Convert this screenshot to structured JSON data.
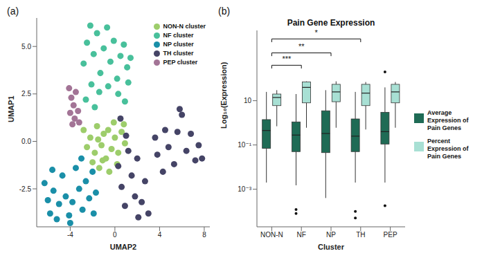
{
  "chart_data": [
    {
      "panel": "(a)",
      "type": "scatter",
      "x_label": "UMAP2",
      "y_label": "UMAP1",
      "xlim": [
        -7,
        8.5
      ],
      "xticks": [
        -4,
        0,
        4,
        8
      ],
      "ylim": [
        -4.5,
        6.5
      ],
      "yticks": [
        -2.5,
        {
          "value": 0,
          "label": "0.0"
        },
        2.5,
        {
          "value": 5,
          "label": "5.0"
        }
      ],
      "legend": "upper right",
      "series": [
        {
          "name": "NON-N cluster",
          "color": "#9dcd6b",
          "x": [
            -2.5,
            -2.2,
            -1.8,
            -1.5,
            -1.2,
            -1,
            -0.8,
            -0.6,
            -0.3,
            0,
            0.3,
            0.6,
            0.9,
            -2,
            -1.4,
            -0.5,
            0.2,
            -2.8,
            -1.6,
            -0.1,
            0.8,
            -1.1
          ],
          "y": [
            -0.3,
            0.2,
            -0.6,
            0.1,
            -0.2,
            0.4,
            -0.9,
            0.6,
            -0.4,
            0.2,
            -0.6,
            0.5,
            -0.1,
            -1.1,
            -1.4,
            -1.6,
            -1.2,
            0.6,
            0.8,
            1.0,
            0.9,
            -1.0
          ]
        },
        {
          "name": "NF cluster",
          "color": "#48c09b",
          "x": [
            -2.8,
            -2.5,
            -2.2,
            -1.9,
            -1.6,
            -1.3,
            -1,
            -0.7,
            -0.4,
            -0.1,
            0.2,
            0.5,
            0.8,
            1.1,
            1.4,
            -2.1,
            -1.4,
            -0.6,
            0.3,
            -2.6,
            -1.8,
            0.9,
            1.2
          ],
          "y": [
            4.1,
            5.2,
            6.1,
            4.6,
            5.7,
            3.6,
            4.9,
            6.0,
            4.2,
            5.3,
            3.3,
            4.5,
            5.1,
            3.9,
            4.4,
            3.0,
            2.6,
            2.9,
            2.5,
            2.2,
            1.8,
            2.1,
            3.1
          ]
        },
        {
          "name": "NP cluster",
          "color": "#1a8fa8",
          "x": [
            -6.3,
            -6.0,
            -5.8,
            -5.5,
            -5.2,
            -5.0,
            -4.7,
            -4.4,
            -4.1,
            -3.8,
            -3.5,
            -3.2,
            -2.9,
            -2.6,
            -2.3,
            -2.0,
            -1.7,
            -5.6,
            -4.0,
            -1.9,
            -3.0
          ],
          "y": [
            -2.2,
            -3.1,
            -3.8,
            -2.6,
            -4.1,
            -3.3,
            -1.8,
            -2.9,
            -3.9,
            -3.2,
            -1.4,
            -2.5,
            -3.6,
            -2.1,
            -3.0,
            -1.6,
            -2.7,
            -1.5,
            -4.3,
            -3.8,
            -0.9
          ]
        },
        {
          "name": "TH cluster",
          "color": "#454466",
          "x": [
            0.3,
            0.6,
            0.9,
            1.2,
            1.5,
            1.8,
            2.1,
            2.4,
            2.7,
            3.0,
            1.0,
            2.0,
            0.5,
            3.8,
            4.3,
            4.8,
            5.3,
            5.6,
            6.0,
            6.4,
            6.8,
            7.2,
            7.5,
            7.8,
            5.8,
            4.5,
            3.6
          ],
          "y": [
            -1.3,
            -2.4,
            -3.4,
            -0.5,
            -1.8,
            -2.9,
            -4.0,
            -3.2,
            -2.1,
            -3.8,
            0.3,
            -0.9,
            1.2,
            -0.7,
            -1.6,
            -0.3,
            -1.2,
            0.5,
            1.4,
            -0.5,
            0.4,
            -1.0,
            -0.2,
            -0.9,
            1.7,
            0.6,
            0.2
          ]
        },
        {
          "name": "PEP cluster",
          "color": "#a37496",
          "x": [
            -4.1,
            -3.9,
            -3.7,
            -4.0,
            -3.6,
            -3.3,
            -3.5,
            -3.2,
            -3.8
          ],
          "y": [
            2.8,
            2.3,
            1.9,
            1.5,
            1.2,
            1.6,
            2.6,
            1.0,
            0.9
          ]
        }
      ]
    },
    {
      "panel": "(b)",
      "type": "box",
      "title": "Pain Gene Expression",
      "x_label": "Cluster",
      "y_label": "Log₁₀(Expression)",
      "log": "y",
      "ylim": [
        2e-05,
        15000
      ],
      "yticks": [
        {
          "value": 0.001,
          "label": "10⁻³"
        },
        {
          "value": 0.1,
          "label": "10⁻¹"
        },
        10
      ],
      "categories": [
        "NON-N",
        "NF",
        "NP",
        "TH",
        "PEP"
      ],
      "legend": "right",
      "series": [
        {
          "name": "Average Expression of Pain Genes",
          "color": "#1f6b55",
          "boxes": [
            {
              "min": 0.002,
              "q1": 0.07,
              "median": 0.45,
              "q3": 1.4,
              "max": 25,
              "outliers": []
            },
            {
              "min": 0.0015,
              "q1": 0.05,
              "median": 0.28,
              "q3": 1.1,
              "max": 20,
              "outliers": [
                0.00012,
                8e-05
              ]
            },
            {
              "min": 0.0004,
              "q1": 0.045,
              "median": 0.33,
              "q3": 3.5,
              "max": 30,
              "outliers": []
            },
            {
              "min": 0.002,
              "q1": 0.05,
              "median": 0.25,
              "q3": 1.5,
              "max": 25,
              "outliers": [
                0.0001,
                5e-05
              ]
            },
            {
              "min": 0.002,
              "q1": 0.11,
              "median": 0.4,
              "q3": 3,
              "max": 40,
              "outliers": [
                0.00018,
                200
              ]
            }
          ]
        },
        {
          "name": "Percent Expression of Pain Genes",
          "color": "#a8e0d4",
          "boxes": [
            {
              "min": 0.7,
              "q1": 6,
              "median": 14,
              "q3": 20,
              "max": 30,
              "outliers": []
            },
            {
              "min": 0.6,
              "q1": 8,
              "median": 40,
              "q3": 70,
              "max": 75,
              "outliers": []
            },
            {
              "min": 0.6,
              "q1": 9,
              "median": 25,
              "q3": 55,
              "max": 75,
              "outliers": []
            },
            {
              "min": 0.5,
              "q1": 6,
              "median": 22,
              "q3": 55,
              "max": 70,
              "outliers": []
            },
            {
              "min": 0.6,
              "q1": 8,
              "median": 25,
              "q3": 55,
              "max": 70,
              "outliers": []
            }
          ]
        }
      ],
      "annotations": [
        {
          "from": "NON-N",
          "to": "NF",
          "y": 400,
          "label": "***"
        },
        {
          "from": "NON-N",
          "to": "NP",
          "y": 1450,
          "label": "**"
        },
        {
          "from": "NON-N",
          "to": "TH",
          "y": 6200,
          "label": "*"
        }
      ]
    }
  ]
}
